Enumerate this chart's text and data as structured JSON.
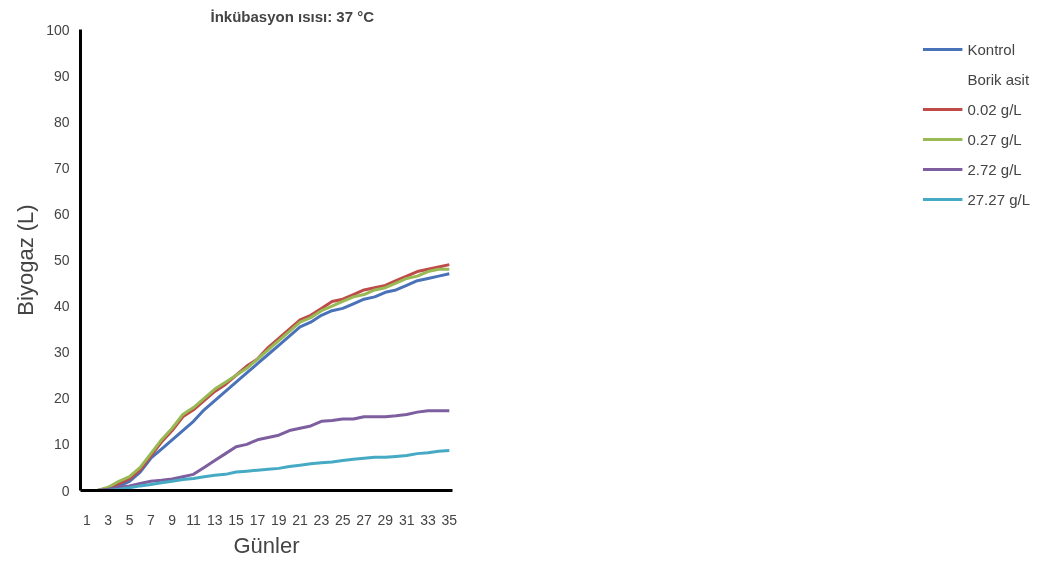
{
  "chart_data": {
    "type": "line",
    "title": "İnkübasyon ısısı: 37 °C",
    "xlabel": "Günler",
    "ylabel": "Biyogaz (L)",
    "x": [
      1,
      2,
      3,
      4,
      5,
      6,
      7,
      8,
      9,
      10,
      11,
      12,
      13,
      14,
      15,
      16,
      17,
      18,
      19,
      20,
      21,
      22,
      23,
      24,
      25,
      26,
      27,
      28,
      29,
      30,
      31,
      32,
      33,
      34,
      35
    ],
    "xlim": [
      0.4,
      35.3
    ],
    "xticks": [
      1,
      3,
      5,
      7,
      9,
      11,
      13,
      15,
      17,
      19,
      21,
      23,
      25,
      27,
      29,
      31,
      33,
      35
    ],
    "ylim": [
      0,
      100
    ],
    "yticks": [
      0,
      10,
      20,
      30,
      40,
      50,
      60,
      70,
      80,
      90,
      100
    ],
    "grid": false,
    "legend": "right",
    "annotations": [
      "Borik asit"
    ],
    "series": [
      {
        "name": "Kontrol",
        "color": "#4a72b8",
        "values": [
          0,
          0,
          0.5,
          1,
          2,
          4,
          7,
          9,
          11,
          13,
          15,
          17.5,
          19.5,
          21.5,
          23.5,
          25.5,
          27.5,
          29.5,
          31.5,
          33.5,
          35.5,
          36.5,
          38,
          39,
          39.5,
          40.5,
          41.5,
          42,
          43,
          43.5,
          44.5,
          45.5,
          46,
          46.5,
          47
        ]
      },
      {
        "name": "0.02 g/L",
        "color": "#be4b48",
        "values": [
          0,
          0,
          0.5,
          1.5,
          2.5,
          4.5,
          7.5,
          10.5,
          13,
          16,
          17.5,
          19.5,
          21.5,
          23,
          25,
          27,
          28.5,
          31,
          33,
          35,
          37,
          38,
          39.5,
          41,
          41.5,
          42.5,
          43.5,
          44,
          44.5,
          45.5,
          46.5,
          47.5,
          48,
          48.5,
          49
        ]
      },
      {
        "name": "0.27 g/L",
        "color": "#98b954",
        "values": [
          0,
          0,
          0.7,
          2,
          3,
          5,
          8,
          11,
          13.5,
          16.5,
          18,
          20,
          22,
          23.5,
          25,
          26.5,
          28.5,
          30.5,
          32.5,
          34.5,
          36.5,
          37.5,
          39,
          40,
          41,
          42,
          42.5,
          43.5,
          44,
          45,
          46,
          46.5,
          47.5,
          48,
          48
        ]
      },
      {
        "name": "2.72 g/L",
        "color": "#7d5fa0",
        "values": [
          0,
          0,
          0.3,
          0.7,
          1,
          1.5,
          2,
          2.2,
          2.5,
          3,
          3.5,
          5,
          6.5,
          8,
          9.5,
          10,
          11,
          11.5,
          12,
          13,
          13.5,
          14,
          15,
          15.2,
          15.5,
          15.5,
          16,
          16,
          16,
          16.2,
          16.5,
          17,
          17.3,
          17.3,
          17.3
        ]
      },
      {
        "name": "27.27 g/L",
        "color": "#46aac5",
        "values": [
          0,
          0,
          0,
          0.3,
          0.6,
          1,
          1.3,
          1.7,
          2,
          2.4,
          2.6,
          3,
          3.3,
          3.5,
          4,
          4.2,
          4.4,
          4.6,
          4.8,
          5.2,
          5.5,
          5.8,
          6,
          6.2,
          6.5,
          6.8,
          7,
          7.2,
          7.2,
          7.4,
          7.6,
          8,
          8.2,
          8.5,
          8.7
        ]
      }
    ]
  }
}
